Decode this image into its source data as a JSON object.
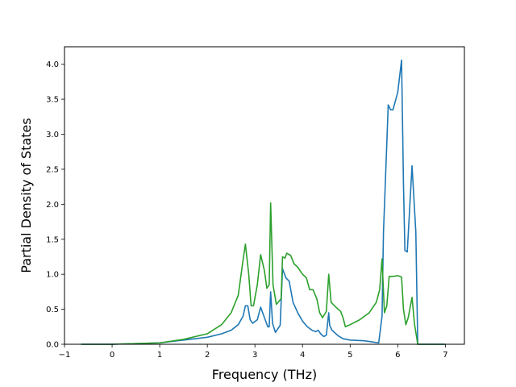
{
  "chart_data": {
    "type": "line",
    "title": "",
    "xlabel": "Frequency (THz)",
    "ylabel": "Partial Density of States",
    "xlim": [
      -1.0,
      7.4
    ],
    "ylim": [
      0.0,
      4.25
    ],
    "xticks": [
      -1,
      0,
      1,
      2,
      3,
      4,
      5,
      6,
      7
    ],
    "xtick_labels": [
      "−1",
      "0",
      "1",
      "2",
      "3",
      "4",
      "5",
      "6",
      "7"
    ],
    "yticks": [
      0.0,
      0.5,
      1.0,
      1.5,
      2.0,
      2.5,
      3.0,
      3.5,
      4.0
    ],
    "ytick_labels": [
      "0.0",
      "0.5",
      "1.0",
      "1.5",
      "2.0",
      "2.5",
      "3.0",
      "3.5",
      "4.0"
    ],
    "grid": false,
    "legend": "none",
    "series": [
      {
        "color": "#1f77b4",
        "points": [
          [
            -0.65,
            0.0
          ],
          [
            0.0,
            0.0
          ],
          [
            0.5,
            0.01
          ],
          [
            1.0,
            0.02
          ],
          [
            1.5,
            0.06
          ],
          [
            2.0,
            0.1
          ],
          [
            2.3,
            0.15
          ],
          [
            2.5,
            0.2
          ],
          [
            2.65,
            0.28
          ],
          [
            2.75,
            0.4
          ],
          [
            2.8,
            0.55
          ],
          [
            2.85,
            0.55
          ],
          [
            2.9,
            0.35
          ],
          [
            2.95,
            0.3
          ],
          [
            3.05,
            0.35
          ],
          [
            3.12,
            0.53
          ],
          [
            3.2,
            0.38
          ],
          [
            3.27,
            0.25
          ],
          [
            3.3,
            0.25
          ],
          [
            3.33,
            0.75
          ],
          [
            3.37,
            0.3
          ],
          [
            3.43,
            0.17
          ],
          [
            3.53,
            0.27
          ],
          [
            3.58,
            1.08
          ],
          [
            3.65,
            0.95
          ],
          [
            3.72,
            0.9
          ],
          [
            3.8,
            0.6
          ],
          [
            3.9,
            0.45
          ],
          [
            4.0,
            0.33
          ],
          [
            4.1,
            0.25
          ],
          [
            4.2,
            0.2
          ],
          [
            4.28,
            0.18
          ],
          [
            4.33,
            0.2
          ],
          [
            4.38,
            0.15
          ],
          [
            4.45,
            0.11
          ],
          [
            4.5,
            0.13
          ],
          [
            4.55,
            0.45
          ],
          [
            4.57,
            0.27
          ],
          [
            4.62,
            0.2
          ],
          [
            4.75,
            0.12
          ],
          [
            4.85,
            0.08
          ],
          [
            5.0,
            0.06
          ],
          [
            5.3,
            0.05
          ],
          [
            5.6,
            0.02
          ],
          [
            5.67,
            0.4
          ],
          [
            5.7,
            1.6
          ],
          [
            5.75,
            2.5
          ],
          [
            5.8,
            3.42
          ],
          [
            5.85,
            3.35
          ],
          [
            5.9,
            3.35
          ],
          [
            6.0,
            3.6
          ],
          [
            6.08,
            4.06
          ],
          [
            6.12,
            2.3
          ],
          [
            6.15,
            1.34
          ],
          [
            6.2,
            1.32
          ],
          [
            6.3,
            2.55
          ],
          [
            6.38,
            1.6
          ],
          [
            6.42,
            0.0
          ],
          [
            7.0,
            0.0
          ]
        ]
      },
      {
        "color": "#2ca02c",
        "points": [
          [
            -0.65,
            0.0
          ],
          [
            0.0,
            0.0
          ],
          [
            0.5,
            0.01
          ],
          [
            1.0,
            0.02
          ],
          [
            1.5,
            0.07
          ],
          [
            2.0,
            0.15
          ],
          [
            2.3,
            0.28
          ],
          [
            2.5,
            0.45
          ],
          [
            2.65,
            0.7
          ],
          [
            2.75,
            1.2
          ],
          [
            2.8,
            1.43
          ],
          [
            2.87,
            1.0
          ],
          [
            2.92,
            0.55
          ],
          [
            2.97,
            0.55
          ],
          [
            3.05,
            0.85
          ],
          [
            3.12,
            1.28
          ],
          [
            3.2,
            1.05
          ],
          [
            3.25,
            0.8
          ],
          [
            3.3,
            0.85
          ],
          [
            3.33,
            2.02
          ],
          [
            3.38,
            0.85
          ],
          [
            3.45,
            0.57
          ],
          [
            3.55,
            0.65
          ],
          [
            3.58,
            1.25
          ],
          [
            3.63,
            1.23
          ],
          [
            3.67,
            1.3
          ],
          [
            3.75,
            1.27
          ],
          [
            3.82,
            1.15
          ],
          [
            3.9,
            1.1
          ],
          [
            4.0,
            1.0
          ],
          [
            4.08,
            0.95
          ],
          [
            4.15,
            0.78
          ],
          [
            4.22,
            0.78
          ],
          [
            4.3,
            0.65
          ],
          [
            4.36,
            0.45
          ],
          [
            4.42,
            0.38
          ],
          [
            4.5,
            0.47
          ],
          [
            4.55,
            1.0
          ],
          [
            4.6,
            0.6
          ],
          [
            4.7,
            0.53
          ],
          [
            4.8,
            0.47
          ],
          [
            4.85,
            0.38
          ],
          [
            4.9,
            0.25
          ],
          [
            5.0,
            0.28
          ],
          [
            5.2,
            0.35
          ],
          [
            5.4,
            0.45
          ],
          [
            5.55,
            0.6
          ],
          [
            5.62,
            0.78
          ],
          [
            5.67,
            1.22
          ],
          [
            5.72,
            0.45
          ],
          [
            5.77,
            0.55
          ],
          [
            5.82,
            0.97
          ],
          [
            5.9,
            0.97
          ],
          [
            6.0,
            0.98
          ],
          [
            6.08,
            0.96
          ],
          [
            6.12,
            0.5
          ],
          [
            6.17,
            0.28
          ],
          [
            6.22,
            0.38
          ],
          [
            6.3,
            0.67
          ],
          [
            6.35,
            0.3
          ],
          [
            6.42,
            0.0
          ],
          [
            7.0,
            0.0
          ]
        ]
      }
    ]
  }
}
